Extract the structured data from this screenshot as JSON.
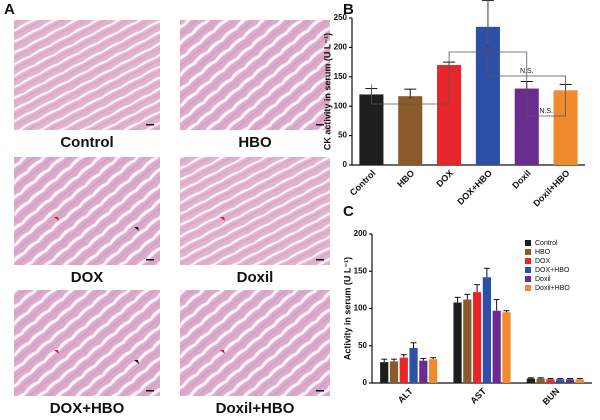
{
  "panel_a": {
    "letter": "A",
    "labels": [
      "Control",
      "HBO",
      "DOX",
      "Doxil",
      "DOX+HBO",
      "Doxil+HBO"
    ]
  },
  "chart_data": [
    {
      "type": "bar",
      "letter": "B",
      "y_label": "CK activity in serum (U L⁻¹)",
      "categories": [
        "Control",
        "HBO",
        "DOX",
        "DOX+HBO",
        "Doxil",
        "Doxil+HBO"
      ],
      "values": [
        120,
        117,
        170,
        235,
        130,
        127
      ],
      "errors": [
        10,
        12,
        5,
        45,
        12,
        10
      ],
      "colors": [
        "#1e1e1e",
        "#8b5a2b",
        "#e8262a",
        "#2e4fa8",
        "#6a2c8e",
        "#f08a2c"
      ],
      "ylim": [
        0,
        250
      ],
      "yticks": [
        0,
        50,
        100,
        150,
        200,
        250
      ],
      "annotations": [
        "*",
        "*",
        "N.S.",
        "N.S."
      ]
    },
    {
      "type": "bar",
      "letter": "C",
      "y_label": "Activity in serum (U L⁻¹)",
      "categories": [
        "ALT",
        "AST",
        "BUN"
      ],
      "series": [
        {
          "name": "Control",
          "color": "#1e1e1e",
          "values": [
            28,
            108,
            6
          ],
          "errors": [
            4,
            7,
            1
          ]
        },
        {
          "name": "HBO",
          "color": "#8b5a2b",
          "values": [
            29,
            112,
            6
          ],
          "errors": [
            3,
            7,
            1
          ]
        },
        {
          "name": "DOX",
          "color": "#e8262a",
          "values": [
            34,
            122,
            5
          ],
          "errors": [
            4,
            10,
            1
          ]
        },
        {
          "name": "DOX+HBO",
          "color": "#2e4fa8",
          "values": [
            47,
            142,
            5
          ],
          "errors": [
            7,
            12,
            1
          ]
        },
        {
          "name": "Doxil",
          "color": "#6a2c8e",
          "values": [
            30,
            97,
            5
          ],
          "errors": [
            3,
            15,
            1
          ]
        },
        {
          "name": "Doxil+HBO",
          "color": "#f08a2c",
          "values": [
            32,
            95,
            5
          ],
          "errors": [
            2,
            2,
            1
          ]
        }
      ],
      "ylim": [
        0,
        200
      ],
      "yticks": [
        0,
        50,
        100,
        150,
        200
      ],
      "legend": "upper right"
    }
  ]
}
